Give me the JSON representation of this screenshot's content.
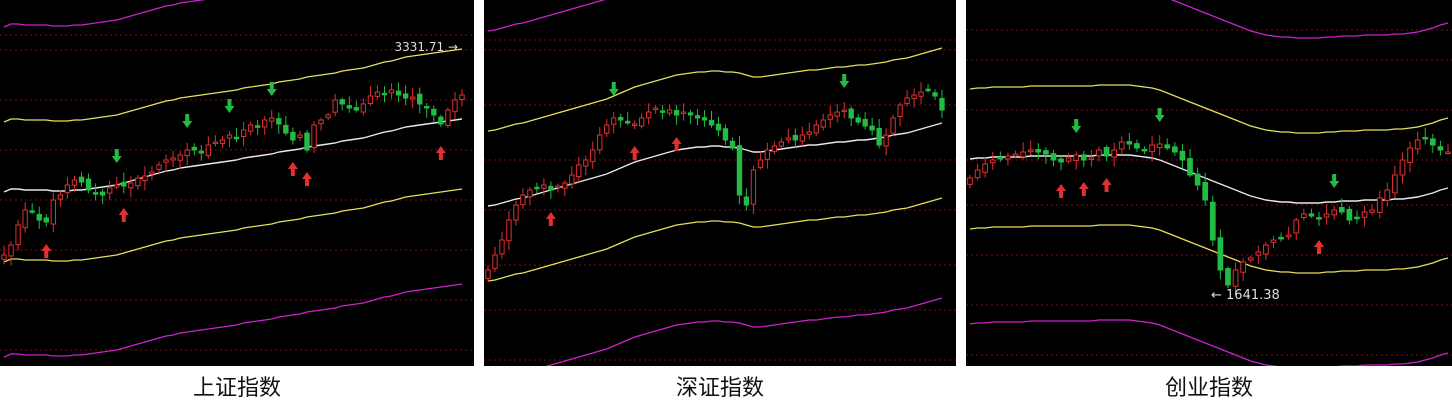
{
  "panels": [
    {
      "name": "上证指数",
      "label_value": "3331.71",
      "label_anchor": "top-right",
      "colors": {
        "outer_band": "#cc22cc",
        "inner_band": "#e5e05a",
        "mid_line": "#e8e8e8",
        "up": "#e03030",
        "down": "#22bb44",
        "grid": "#7a1010"
      },
      "bars": 66,
      "mid": [
        192,
        189,
        189,
        190,
        190,
        190,
        190,
        191,
        191,
        191,
        190,
        190,
        189,
        188,
        187,
        186,
        185,
        183,
        181,
        179,
        177,
        175,
        173,
        171,
        170,
        168,
        167,
        166,
        165,
        164,
        163,
        162,
        161,
        160,
        158,
        157,
        156,
        155,
        154,
        152,
        151,
        150,
        149,
        147,
        146,
        145,
        144,
        143,
        141,
        140,
        139,
        138,
        136,
        134,
        132,
        131,
        129,
        127,
        126,
        125,
        124,
        123,
        122,
        121,
        120,
        119
      ],
      "mid_anchor": 58,
      "k_inner": 0.8,
      "k_outer": 1.0,
      "ohlc_seed": 3,
      "trend": [
        255,
        245,
        225,
        210,
        212,
        220,
        222,
        200,
        195,
        185,
        180,
        182,
        190,
        194,
        195,
        188,
        185,
        186,
        183,
        178,
        176,
        172,
        165,
        160,
        158,
        155,
        150,
        150,
        153,
        145,
        142,
        140,
        135,
        138,
        130,
        125,
        127,
        120,
        118,
        124,
        133,
        140,
        135,
        150,
        125,
        120,
        115,
        100,
        104,
        108,
        110,
        104,
        96,
        92,
        94,
        90,
        95,
        98,
        97,
        104,
        108,
        115,
        124,
        110,
        100,
        95
      ]
    },
    {
      "name": "深证指数",
      "colors": {
        "outer_band": "#cc22cc",
        "inner_band": "#e5e05a",
        "mid_line": "#e8e8e8",
        "up": "#e03030",
        "down": "#22bb44",
        "grid": "#7a1010"
      },
      "bars": 66,
      "mid": [
        206,
        205,
        203,
        201,
        199,
        198,
        196,
        194,
        192,
        190,
        188,
        186,
        184,
        182,
        180,
        178,
        176,
        174,
        171,
        168,
        165,
        162,
        160,
        158,
        156,
        154,
        152,
        150,
        149,
        148,
        147,
        147,
        146,
        146,
        147,
        147,
        148,
        150,
        152,
        152,
        151,
        150,
        149,
        148,
        147,
        146,
        145,
        145,
        144,
        143,
        142,
        142,
        141,
        140,
        140,
        139,
        138,
        137,
        135,
        134,
        133,
        131,
        129,
        127,
        125,
        123
      ],
      "mid_anchor": 90,
      "k_inner": 0.8,
      "k_outer": 1.0,
      "ohlc_seed": 11,
      "trend": [
        270,
        255,
        240,
        220,
        205,
        195,
        190,
        188,
        185,
        190,
        186,
        183,
        175,
        165,
        160,
        150,
        135,
        125,
        118,
        120,
        123,
        124,
        118,
        112,
        108,
        112,
        110,
        115,
        112,
        115,
        118,
        120,
        125,
        130,
        140,
        148,
        195,
        205,
        170,
        160,
        150,
        146,
        142,
        138,
        140,
        135,
        132,
        125,
        120,
        115,
        112,
        110,
        118,
        122,
        126,
        130,
        145,
        135,
        118,
        105,
        98,
        95,
        92,
        90,
        96,
        110
      ]
    },
    {
      "name": "创业指数",
      "label_value": "1641.38",
      "label_anchor": "bottom-center",
      "colors": {
        "outer_band": "#cc22cc",
        "inner_band": "#e5e05a",
        "mid_line": "#e8e8e8",
        "up": "#e03030",
        "down": "#22bb44",
        "grid": "#7a1010"
      },
      "bars": 64,
      "mid": [
        159,
        158,
        158,
        157,
        157,
        157,
        157,
        157,
        156,
        156,
        156,
        156,
        156,
        156,
        156,
        156,
        156,
        155,
        155,
        155,
        155,
        155,
        156,
        157,
        158,
        160,
        163,
        166,
        169,
        172,
        175,
        178,
        181,
        184,
        187,
        190,
        193,
        196,
        198,
        200,
        201,
        202,
        202,
        203,
        203,
        203,
        203,
        202,
        202,
        201,
        201,
        201,
        200,
        200,
        200,
        200,
        199,
        199,
        198,
        197,
        195,
        193,
        190,
        188
      ],
      "mid_anchor": 38,
      "k_inner": 0.8,
      "k_outer": 1.0,
      "ohlc_seed": 7,
      "trend": [
        178,
        170,
        164,
        160,
        158,
        156,
        154,
        152,
        150,
        152,
        154,
        160,
        162,
        158,
        155,
        160,
        158,
        150,
        156,
        150,
        142,
        144,
        148,
        150,
        145,
        144,
        148,
        152,
        160,
        175,
        185,
        200,
        240,
        270,
        285,
        270,
        262,
        258,
        252,
        245,
        240,
        238,
        235,
        220,
        214,
        216,
        218,
        214,
        210,
        212,
        220,
        218,
        212,
        210,
        198,
        190,
        175,
        160,
        148,
        140,
        138,
        145,
        150,
        152
      ]
    }
  ]
}
